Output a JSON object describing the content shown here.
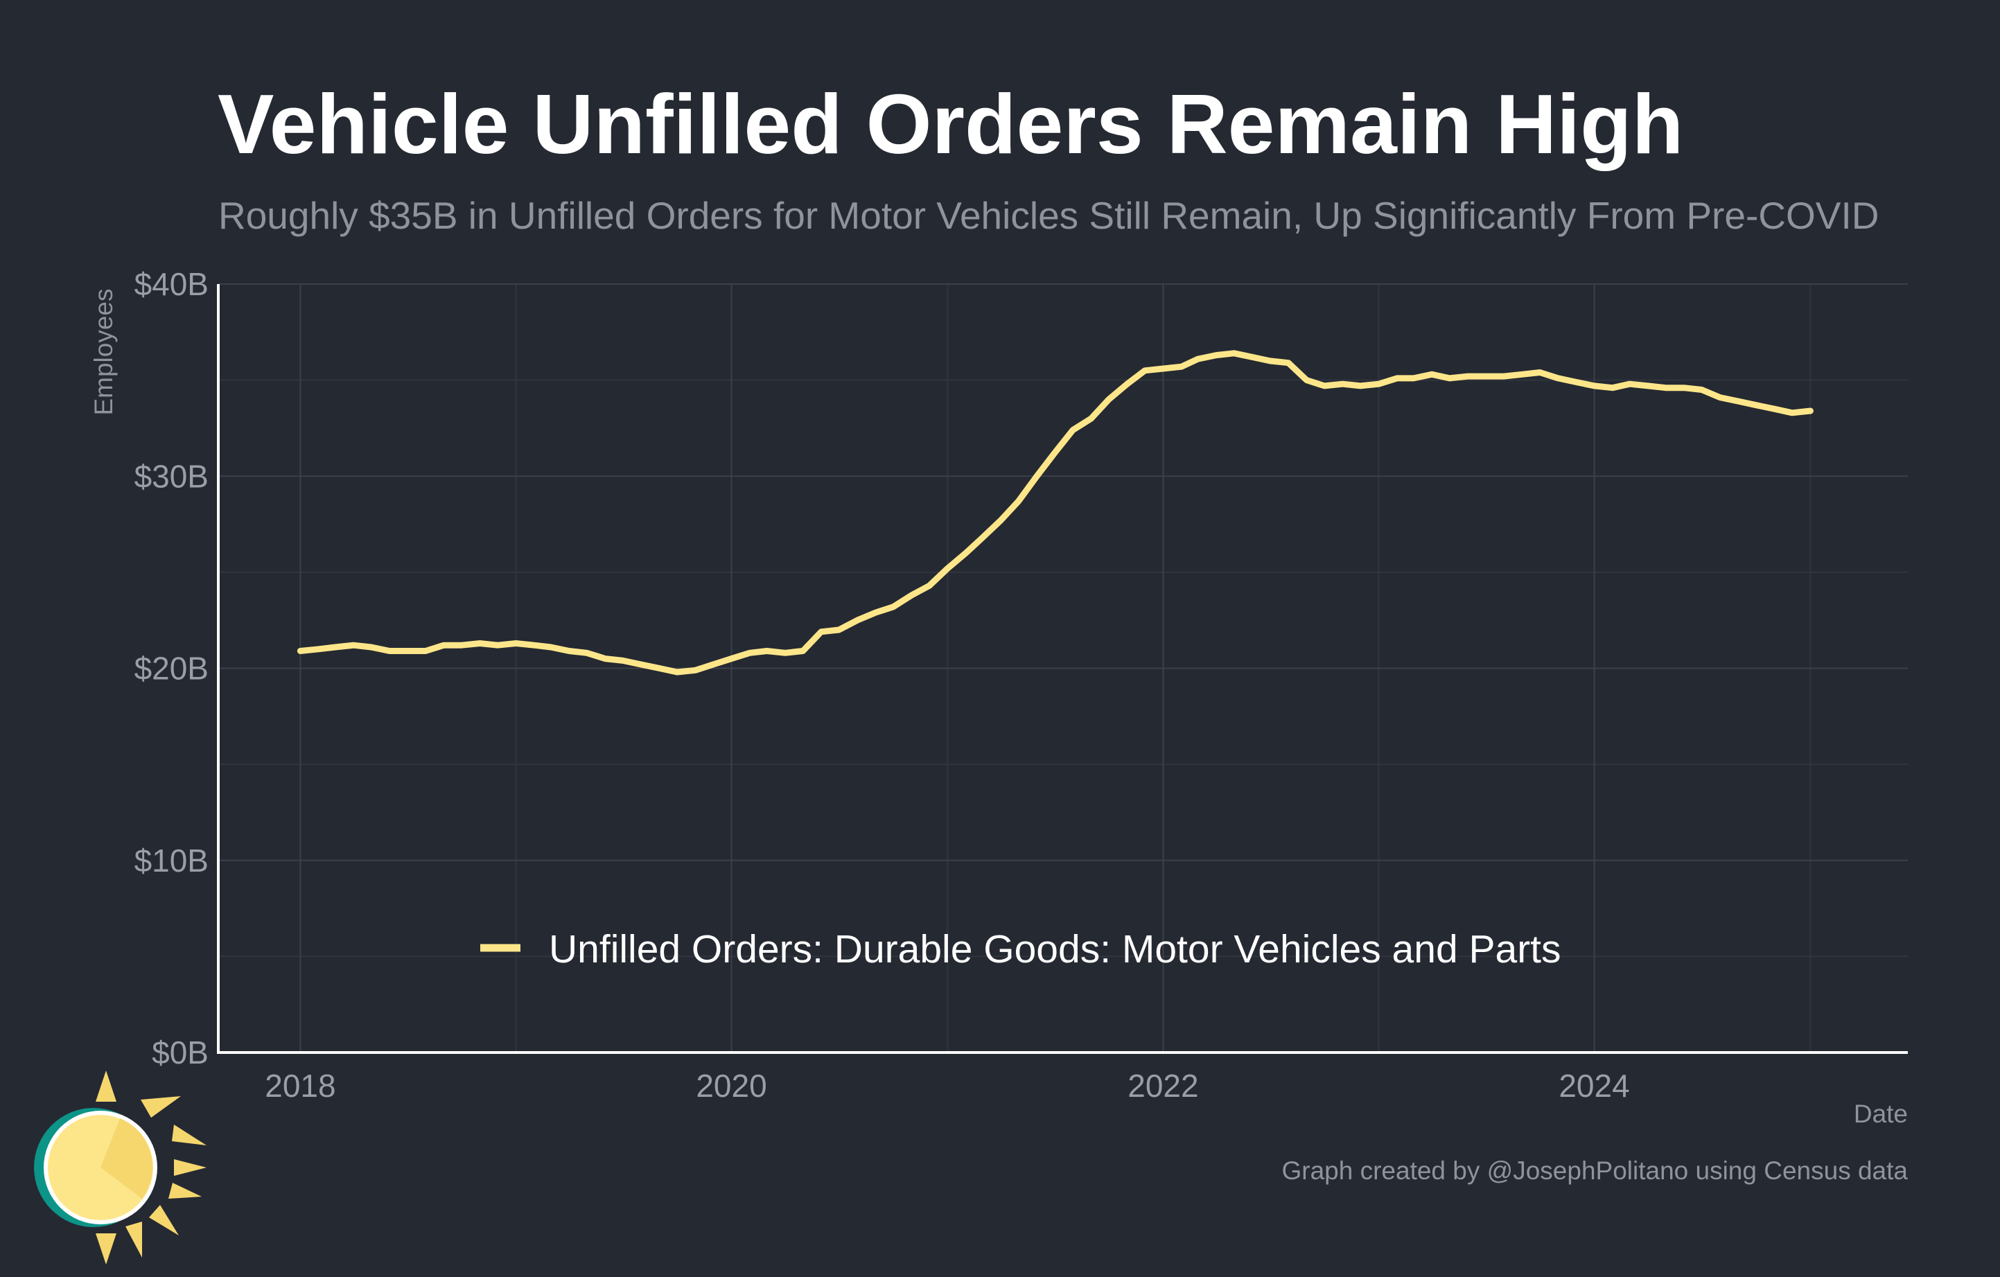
{
  "chart_data": {
    "type": "line",
    "title": "Vehicle Unfilled Orders Remain High",
    "subtitle": "Roughly $35B in Unfilled Orders for Motor Vehicles Still Remain, Up Significantly From Pre-COVID",
    "xlabel": "Date",
    "ylabel": "Employees",
    "credit": "Graph created by @JosephPolitano using Census data",
    "xlim": [
      "2017-08-15",
      "2025-06-15"
    ],
    "ylim": [
      0,
      40
    ],
    "x_ticks": [
      {
        "value": "2018-01-01",
        "label": "2018"
      },
      {
        "value": "2020-01-01",
        "label": "2020"
      },
      {
        "value": "2022-01-01",
        "label": "2022"
      },
      {
        "value": "2024-01-01",
        "label": "2024"
      }
    ],
    "y_ticks": [
      {
        "value": 0,
        "label": "$0B"
      },
      {
        "value": 10,
        "label": "$10B"
      },
      {
        "value": 20,
        "label": "$20B"
      },
      {
        "value": 30,
        "label": "$30B"
      },
      {
        "value": 40,
        "label": "$40B"
      }
    ],
    "grid": true,
    "legend_position": "bottom-center",
    "series": [
      {
        "name": "Unfilled Orders: Durable Goods: Motor Vehicles and Parts",
        "color": "#fde68a",
        "x": [
          "2018-01",
          "2018-02",
          "2018-03",
          "2018-04",
          "2018-05",
          "2018-06",
          "2018-07",
          "2018-08",
          "2018-09",
          "2018-10",
          "2018-11",
          "2018-12",
          "2019-01",
          "2019-02",
          "2019-03",
          "2019-04",
          "2019-05",
          "2019-06",
          "2019-07",
          "2019-08",
          "2019-09",
          "2019-10",
          "2019-11",
          "2019-12",
          "2020-01",
          "2020-02",
          "2020-03",
          "2020-04",
          "2020-05",
          "2020-06",
          "2020-07",
          "2020-08",
          "2020-09",
          "2020-10",
          "2020-11",
          "2020-12",
          "2021-01",
          "2021-02",
          "2021-03",
          "2021-04",
          "2021-05",
          "2021-06",
          "2021-07",
          "2021-08",
          "2021-09",
          "2021-10",
          "2021-11",
          "2021-12",
          "2022-01",
          "2022-02",
          "2022-03",
          "2022-04",
          "2022-05",
          "2022-06",
          "2022-07",
          "2022-08",
          "2022-09",
          "2022-10",
          "2022-11",
          "2022-12",
          "2023-01",
          "2023-02",
          "2023-03",
          "2023-04",
          "2023-05",
          "2023-06",
          "2023-07",
          "2023-08",
          "2023-09",
          "2023-10",
          "2023-11",
          "2023-12",
          "2024-01",
          "2024-02",
          "2024-03",
          "2024-04",
          "2024-05",
          "2024-06",
          "2024-07",
          "2024-08",
          "2024-09",
          "2024-10",
          "2024-11",
          "2024-12",
          "2025-01"
        ],
        "values": [
          20.9,
          21.0,
          21.1,
          21.2,
          21.1,
          20.9,
          20.9,
          20.9,
          21.2,
          21.2,
          21.3,
          21.2,
          21.3,
          21.2,
          21.1,
          20.9,
          20.8,
          20.5,
          20.4,
          20.2,
          20.0,
          19.8,
          19.9,
          20.2,
          20.5,
          20.8,
          20.9,
          20.8,
          20.9,
          21.9,
          22.0,
          22.5,
          22.9,
          23.2,
          23.8,
          24.3,
          25.2,
          26.0,
          26.8,
          27.7,
          28.7,
          30.0,
          31.2,
          32.4,
          33.0,
          34.0,
          34.8,
          35.5,
          35.6,
          35.7,
          36.1,
          36.3,
          36.4,
          36.2,
          36.0,
          35.9,
          35.0,
          34.7,
          34.8,
          34.7,
          34.8,
          35.1,
          35.1,
          35.3,
          35.1,
          35.2,
          35.2,
          35.2,
          35.3,
          35.4,
          35.1,
          34.9,
          34.7,
          34.6,
          34.8,
          34.7,
          34.6,
          34.6,
          34.5,
          34.1,
          33.9,
          33.7,
          33.5,
          33.3,
          33.4
        ]
      }
    ]
  },
  "logo": {
    "name": "sun-clock-logo",
    "colors": [
      "#f5d76e",
      "#fde68a",
      "#0d9488"
    ]
  }
}
